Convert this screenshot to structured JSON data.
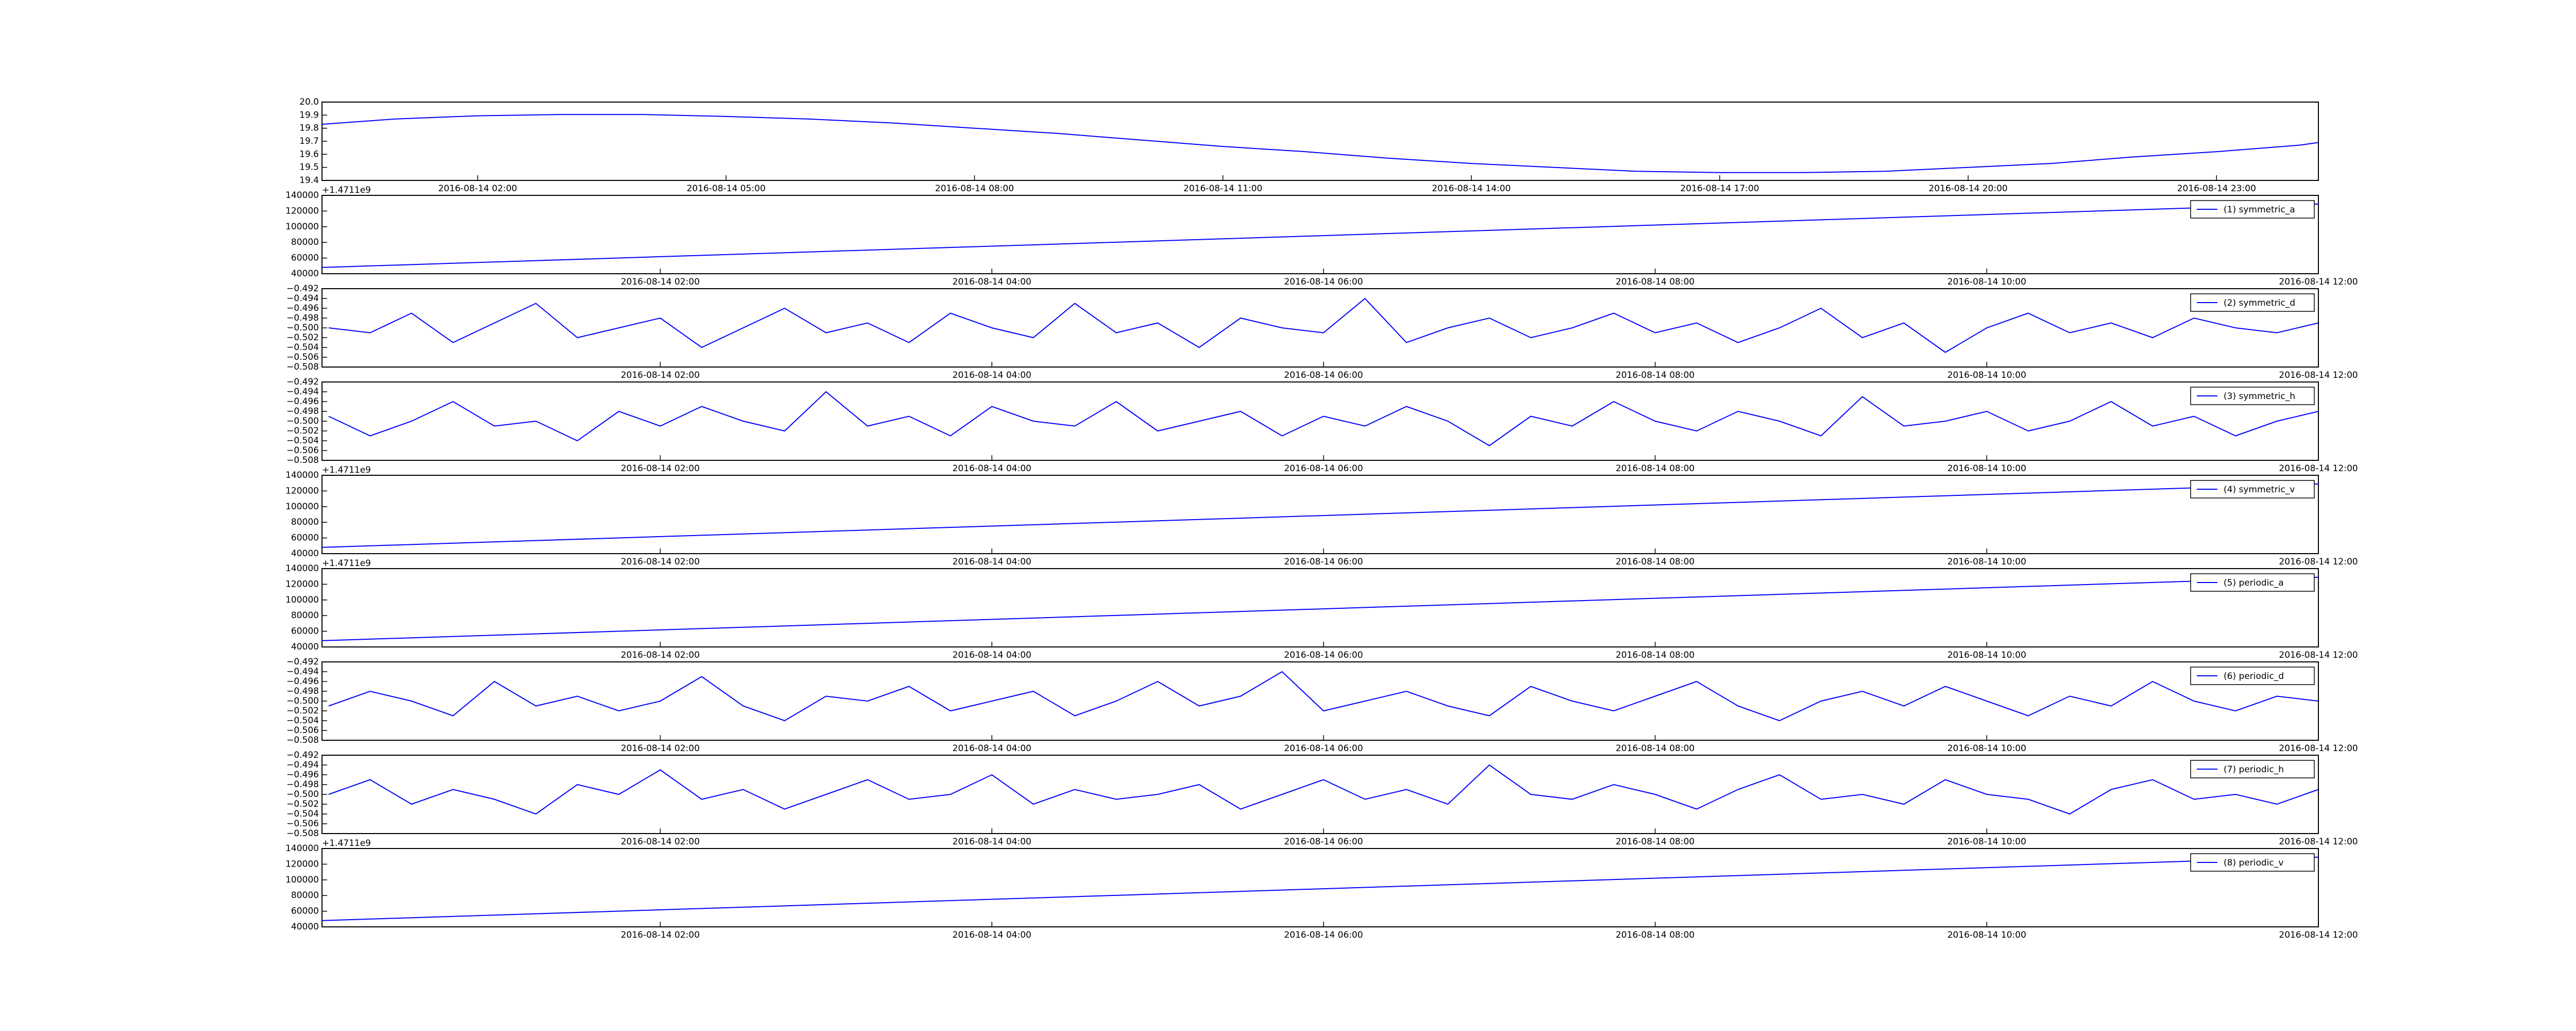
{
  "chart_data": [
    {
      "type": "line",
      "series": [
        {
          "color": "#0000ff",
          "values": [
            19.83,
            19.87,
            19.895,
            19.905,
            19.905,
            19.89,
            19.87,
            19.84,
            19.8,
            19.76,
            19.71,
            19.66,
            19.62,
            19.57,
            19.53,
            19.5,
            19.47,
            19.46,
            19.46,
            19.47,
            19.5,
            19.53,
            19.58,
            19.62,
            19.67,
            19.69
          ]
        }
      ],
      "x": [
        0.12,
        1,
        2,
        3,
        4,
        5,
        6,
        7,
        8,
        9,
        10,
        11,
        12,
        13,
        14,
        15,
        16,
        17,
        18,
        19,
        20,
        21,
        22,
        23,
        24,
        24.23
      ],
      "xlim": [
        0.12,
        24.23
      ],
      "xticks": [
        {
          "value": 2,
          "label": "2016-08-14 02:00"
        },
        {
          "value": 5,
          "label": "2016-08-14 05:00"
        },
        {
          "value": 8,
          "label": "2016-08-14 08:00"
        },
        {
          "value": 11,
          "label": "2016-08-14 11:00"
        },
        {
          "value": 14,
          "label": "2016-08-14 14:00"
        },
        {
          "value": 17,
          "label": "2016-08-14 17:00"
        },
        {
          "value": 20,
          "label": "2016-08-14 20:00"
        },
        {
          "value": 23,
          "label": "2016-08-14 23:00"
        }
      ],
      "ylim": [
        19.4,
        20.0
      ],
      "yticks": [
        19.4,
        19.5,
        19.6,
        19.7,
        19.8,
        19.9,
        {
          "value": 20.0,
          "label": "20.0"
        }
      ]
    },
    {
      "type": "line",
      "offset_text": "+1.4711e9",
      "legend": "upper right",
      "series": [
        {
          "name": "(1) symmetric_a",
          "color": "#0000ff",
          "values": [
            48000,
            129000
          ]
        }
      ],
      "x": [
        -0.04,
        12
      ],
      "xlim": [
        -0.04,
        12
      ],
      "xticks": [
        {
          "value": 2,
          "label": "2016-08-14 02:00"
        },
        {
          "value": 4,
          "label": "2016-08-14 04:00"
        },
        {
          "value": 6,
          "label": "2016-08-14 06:00"
        },
        {
          "value": 8,
          "label": "2016-08-14 08:00"
        },
        {
          "value": 10,
          "label": "2016-08-14 10:00"
        },
        {
          "value": 12,
          "label": "2016-08-14 12:00"
        }
      ],
      "ylim": [
        40000,
        140000
      ],
      "yticks": [
        40000,
        60000,
        80000,
        100000,
        120000,
        140000
      ]
    },
    {
      "type": "line",
      "legend": "upper right",
      "series": [
        {
          "name": "(2) symmetric_d",
          "color": "#0000ff",
          "values": [
            -0.5,
            -0.501,
            -0.497,
            -0.503,
            -0.499,
            -0.495,
            -0.502,
            -0.5,
            -0.498,
            -0.504,
            -0.5,
            -0.496,
            -0.501,
            -0.499,
            -0.503,
            -0.497,
            -0.5,
            -0.502,
            -0.495,
            -0.501,
            -0.499,
            -0.504,
            -0.498,
            -0.5,
            -0.501,
            -0.494,
            -0.503,
            -0.5,
            -0.498,
            -0.502,
            -0.5,
            -0.497,
            -0.501,
            -0.499,
            -0.503,
            -0.5,
            -0.496,
            -0.502,
            -0.499,
            -0.505,
            -0.5,
            -0.497,
            -0.501,
            -0.499,
            -0.502,
            -0.498,
            -0.5,
            -0.501,
            -0.499
          ]
        }
      ],
      "x": [
        0,
        0.25,
        0.5,
        0.75,
        1,
        1.25,
        1.5,
        1.75,
        2,
        2.25,
        2.5,
        2.75,
        3,
        3.25,
        3.5,
        3.75,
        4,
        4.25,
        4.5,
        4.75,
        5,
        5.25,
        5.5,
        5.75,
        6,
        6.25,
        6.5,
        6.75,
        7,
        7.25,
        7.5,
        7.75,
        8,
        8.25,
        8.5,
        8.75,
        9,
        9.25,
        9.5,
        9.75,
        10,
        10.25,
        10.5,
        10.75,
        11,
        11.25,
        11.5,
        11.75,
        12
      ],
      "xlim": [
        -0.04,
        12
      ],
      "xticks": [
        {
          "value": 2,
          "label": "2016-08-14 02:00"
        },
        {
          "value": 4,
          "label": "2016-08-14 04:00"
        },
        {
          "value": 6,
          "label": "2016-08-14 06:00"
        },
        {
          "value": 8,
          "label": "2016-08-14 08:00"
        },
        {
          "value": 10,
          "label": "2016-08-14 10:00"
        },
        {
          "value": 12,
          "label": "2016-08-14 12:00"
        }
      ],
      "ylim": [
        -0.508,
        -0.492
      ],
      "yticks": [
        {
          "value": -0.508,
          "label": "−0.508"
        },
        {
          "value": -0.506,
          "label": "−0.506"
        },
        {
          "value": -0.504,
          "label": "−0.504"
        },
        {
          "value": -0.502,
          "label": "−0.502"
        },
        {
          "value": -0.5,
          "label": "−0.500"
        },
        {
          "value": -0.498,
          "label": "−0.498"
        },
        {
          "value": -0.496,
          "label": "−0.496"
        },
        {
          "value": -0.494,
          "label": "−0.494"
        },
        {
          "value": -0.492,
          "label": "−0.492"
        }
      ]
    },
    {
      "type": "line",
      "legend": "upper right",
      "series": [
        {
          "name": "(3) symmetric_h",
          "color": "#0000ff",
          "values": [
            -0.499,
            -0.503,
            -0.5,
            -0.496,
            -0.501,
            -0.5,
            -0.504,
            -0.498,
            -0.501,
            -0.497,
            -0.5,
            -0.502,
            -0.494,
            -0.501,
            -0.499,
            -0.503,
            -0.497,
            -0.5,
            -0.501,
            -0.496,
            -0.502,
            -0.5,
            -0.498,
            -0.503,
            -0.499,
            -0.501,
            -0.497,
            -0.5,
            -0.505,
            -0.499,
            -0.501,
            -0.496,
            -0.5,
            -0.502,
            -0.498,
            -0.5,
            -0.503,
            -0.495,
            -0.501,
            -0.5,
            -0.498,
            -0.502,
            -0.5,
            -0.496,
            -0.501,
            -0.499,
            -0.503,
            -0.5,
            -0.498
          ]
        }
      ],
      "x": [
        0,
        0.25,
        0.5,
        0.75,
        1,
        1.25,
        1.5,
        1.75,
        2,
        2.25,
        2.5,
        2.75,
        3,
        3.25,
        3.5,
        3.75,
        4,
        4.25,
        4.5,
        4.75,
        5,
        5.25,
        5.5,
        5.75,
        6,
        6.25,
        6.5,
        6.75,
        7,
        7.25,
        7.5,
        7.75,
        8,
        8.25,
        8.5,
        8.75,
        9,
        9.25,
        9.5,
        9.75,
        10,
        10.25,
        10.5,
        10.75,
        11,
        11.25,
        11.5,
        11.75,
        12
      ],
      "xlim": [
        -0.04,
        12
      ],
      "xticks": [
        {
          "value": 2,
          "label": "2016-08-14 02:00"
        },
        {
          "value": 4,
          "label": "2016-08-14 04:00"
        },
        {
          "value": 6,
          "label": "2016-08-14 06:00"
        },
        {
          "value": 8,
          "label": "2016-08-14 08:00"
        },
        {
          "value": 10,
          "label": "2016-08-14 10:00"
        },
        {
          "value": 12,
          "label": "2016-08-14 12:00"
        }
      ],
      "ylim": [
        -0.508,
        -0.492
      ],
      "yticks": [
        {
          "value": -0.508,
          "label": "−0.508"
        },
        {
          "value": -0.506,
          "label": "−0.506"
        },
        {
          "value": -0.504,
          "label": "−0.504"
        },
        {
          "value": -0.502,
          "label": "−0.502"
        },
        {
          "value": -0.5,
          "label": "−0.500"
        },
        {
          "value": -0.498,
          "label": "−0.498"
        },
        {
          "value": -0.496,
          "label": "−0.496"
        },
        {
          "value": -0.494,
          "label": "−0.494"
        },
        {
          "value": -0.492,
          "label": "−0.492"
        }
      ]
    },
    {
      "type": "line",
      "offset_text": "+1.4711e9",
      "legend": "upper right",
      "series": [
        {
          "name": "(4) symmetric_v",
          "color": "#0000ff",
          "values": [
            48000,
            129000
          ]
        }
      ],
      "x": [
        -0.04,
        12
      ],
      "xlim": [
        -0.04,
        12
      ],
      "xticks": [
        {
          "value": 2,
          "label": "2016-08-14 02:00"
        },
        {
          "value": 4,
          "label": "2016-08-14 04:00"
        },
        {
          "value": 6,
          "label": "2016-08-14 06:00"
        },
        {
          "value": 8,
          "label": "2016-08-14 08:00"
        },
        {
          "value": 10,
          "label": "2016-08-14 10:00"
        },
        {
          "value": 12,
          "label": "2016-08-14 12:00"
        }
      ],
      "ylim": [
        40000,
        140000
      ],
      "yticks": [
        40000,
        60000,
        80000,
        100000,
        120000,
        140000
      ]
    },
    {
      "type": "line",
      "offset_text": "+1.4711e9",
      "legend": "upper right",
      "series": [
        {
          "name": "(5) periodic_a",
          "color": "#0000ff",
          "values": [
            48000,
            129000
          ]
        }
      ],
      "x": [
        -0.04,
        12
      ],
      "xlim": [
        -0.04,
        12
      ],
      "xticks": [
        {
          "value": 2,
          "label": "2016-08-14 02:00"
        },
        {
          "value": 4,
          "label": "2016-08-14 04:00"
        },
        {
          "value": 6,
          "label": "2016-08-14 06:00"
        },
        {
          "value": 8,
          "label": "2016-08-14 08:00"
        },
        {
          "value": 10,
          "label": "2016-08-14 10:00"
        },
        {
          "value": 12,
          "label": "2016-08-14 12:00"
        }
      ],
      "ylim": [
        40000,
        140000
      ],
      "yticks": [
        40000,
        60000,
        80000,
        100000,
        120000,
        140000
      ]
    },
    {
      "type": "line",
      "legend": "upper right",
      "series": [
        {
          "name": "(6) periodic_d",
          "color": "#0000ff",
          "values": [
            -0.501,
            -0.498,
            -0.5,
            -0.503,
            -0.496,
            -0.501,
            -0.499,
            -0.502,
            -0.5,
            -0.495,
            -0.501,
            -0.504,
            -0.499,
            -0.5,
            -0.497,
            -0.502,
            -0.5,
            -0.498,
            -0.503,
            -0.5,
            -0.496,
            -0.501,
            -0.499,
            -0.494,
            -0.502,
            -0.5,
            -0.498,
            -0.501,
            -0.503,
            -0.497,
            -0.5,
            -0.502,
            -0.499,
            -0.496,
            -0.501,
            -0.504,
            -0.5,
            -0.498,
            -0.501,
            -0.497,
            -0.5,
            -0.503,
            -0.499,
            -0.501,
            -0.496,
            -0.5,
            -0.502,
            -0.499,
            -0.5
          ]
        }
      ],
      "x": [
        0,
        0.25,
        0.5,
        0.75,
        1,
        1.25,
        1.5,
        1.75,
        2,
        2.25,
        2.5,
        2.75,
        3,
        3.25,
        3.5,
        3.75,
        4,
        4.25,
        4.5,
        4.75,
        5,
        5.25,
        5.5,
        5.75,
        6,
        6.25,
        6.5,
        6.75,
        7,
        7.25,
        7.5,
        7.75,
        8,
        8.25,
        8.5,
        8.75,
        9,
        9.25,
        9.5,
        9.75,
        10,
        10.25,
        10.5,
        10.75,
        11,
        11.25,
        11.5,
        11.75,
        12
      ],
      "xlim": [
        -0.04,
        12
      ],
      "xticks": [
        {
          "value": 2,
          "label": "2016-08-14 02:00"
        },
        {
          "value": 4,
          "label": "2016-08-14 04:00"
        },
        {
          "value": 6,
          "label": "2016-08-14 06:00"
        },
        {
          "value": 8,
          "label": "2016-08-14 08:00"
        },
        {
          "value": 10,
          "label": "2016-08-14 10:00"
        },
        {
          "value": 12,
          "label": "2016-08-14 12:00"
        }
      ],
      "ylim": [
        -0.508,
        -0.492
      ],
      "yticks": [
        {
          "value": -0.508,
          "label": "−0.508"
        },
        {
          "value": -0.506,
          "label": "−0.506"
        },
        {
          "value": -0.504,
          "label": "−0.504"
        },
        {
          "value": -0.502,
          "label": "−0.502"
        },
        {
          "value": -0.5,
          "label": "−0.500"
        },
        {
          "value": -0.498,
          "label": "−0.498"
        },
        {
          "value": -0.496,
          "label": "−0.496"
        },
        {
          "value": -0.494,
          "label": "−0.494"
        },
        {
          "value": -0.492,
          "label": "−0.492"
        }
      ]
    },
    {
      "type": "line",
      "legend": "upper right",
      "series": [
        {
          "name": "(7) periodic_h",
          "color": "#0000ff",
          "values": [
            -0.5,
            -0.497,
            -0.502,
            -0.499,
            -0.501,
            -0.504,
            -0.498,
            -0.5,
            -0.495,
            -0.501,
            -0.499,
            -0.503,
            -0.5,
            -0.497,
            -0.501,
            -0.5,
            -0.496,
            -0.502,
            -0.499,
            -0.501,
            -0.5,
            -0.498,
            -0.503,
            -0.5,
            -0.497,
            -0.501,
            -0.499,
            -0.502,
            -0.494,
            -0.5,
            -0.501,
            -0.498,
            -0.5,
            -0.503,
            -0.499,
            -0.496,
            -0.501,
            -0.5,
            -0.502,
            -0.497,
            -0.5,
            -0.501,
            -0.504,
            -0.499,
            -0.497,
            -0.501,
            -0.5,
            -0.502,
            -0.499
          ]
        }
      ],
      "x": [
        0,
        0.25,
        0.5,
        0.75,
        1,
        1.25,
        1.5,
        1.75,
        2,
        2.25,
        2.5,
        2.75,
        3,
        3.25,
        3.5,
        3.75,
        4,
        4.25,
        4.5,
        4.75,
        5,
        5.25,
        5.5,
        5.75,
        6,
        6.25,
        6.5,
        6.75,
        7,
        7.25,
        7.5,
        7.75,
        8,
        8.25,
        8.5,
        8.75,
        9,
        9.25,
        9.5,
        9.75,
        10,
        10.25,
        10.5,
        10.75,
        11,
        11.25,
        11.5,
        11.75,
        12
      ],
      "xlim": [
        -0.04,
        12
      ],
      "xticks": [
        {
          "value": 2,
          "label": "2016-08-14 02:00"
        },
        {
          "value": 4,
          "label": "2016-08-14 04:00"
        },
        {
          "value": 6,
          "label": "2016-08-14 06:00"
        },
        {
          "value": 8,
          "label": "2016-08-14 08:00"
        },
        {
          "value": 10,
          "label": "2016-08-14 10:00"
        },
        {
          "value": 12,
          "label": "2016-08-14 12:00"
        }
      ],
      "ylim": [
        -0.508,
        -0.492
      ],
      "yticks": [
        {
          "value": -0.508,
          "label": "−0.508"
        },
        {
          "value": -0.506,
          "label": "−0.506"
        },
        {
          "value": -0.504,
          "label": "−0.504"
        },
        {
          "value": -0.502,
          "label": "−0.502"
        },
        {
          "value": -0.5,
          "label": "−0.500"
        },
        {
          "value": -0.498,
          "label": "−0.498"
        },
        {
          "value": -0.496,
          "label": "−0.496"
        },
        {
          "value": -0.494,
          "label": "−0.494"
        },
        {
          "value": -0.492,
          "label": "−0.492"
        }
      ]
    },
    {
      "type": "line",
      "offset_text": "+1.4711e9",
      "legend": "upper right",
      "series": [
        {
          "name": "(8) periodic_v",
          "color": "#0000ff",
          "values": [
            48000,
            129000
          ]
        }
      ],
      "x": [
        -0.04,
        12
      ],
      "xlim": [
        -0.04,
        12
      ],
      "xticks": [
        {
          "value": 2,
          "label": "2016-08-14 02:00"
        },
        {
          "value": 4,
          "label": "2016-08-14 04:00"
        },
        {
          "value": 6,
          "label": "2016-08-14 06:00"
        },
        {
          "value": 8,
          "label": "2016-08-14 08:00"
        },
        {
          "value": 10,
          "label": "2016-08-14 10:00"
        },
        {
          "value": 12,
          "label": "2016-08-14 12:00"
        }
      ],
      "ylim": [
        40000,
        140000
      ],
      "yticks": [
        40000,
        60000,
        80000,
        100000,
        120000,
        140000
      ]
    }
  ]
}
